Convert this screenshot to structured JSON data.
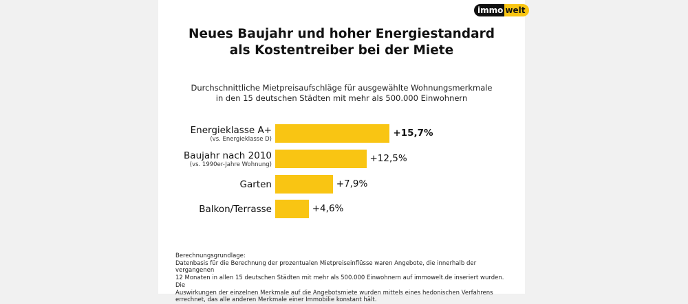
{
  "logo": {
    "part1": "immo",
    "part2": "welt"
  },
  "title": {
    "line1": "Neues Baujahr und hoher Energiestandard",
    "line2": "als Kostentreiber bei der Miete"
  },
  "subtitle": {
    "line1": "Durchschnittliche Mietpreisaufschläge für ausgewählte Wohnungsmerkmale",
    "line2": "in den 15 deutschen Städten mit mehr als 500.000 Einwohnern"
  },
  "chart_data": {
    "type": "bar",
    "orientation": "horizontal",
    "categories": [
      "Energieklasse A+",
      "Baujahr nach 2010",
      "Garten",
      "Balkon/Terrasse"
    ],
    "sublabels": [
      "(vs. Energieklasse D)",
      "(vs. 1990er-Jahre Wohnung)",
      "",
      ""
    ],
    "values": [
      15.7,
      12.5,
      7.9,
      4.6
    ],
    "value_labels": [
      "+15,7%",
      "+12,5%",
      "+7,9%",
      "+4,6%"
    ],
    "bar_color": "#f9c513"
  },
  "footnote": {
    "heading": "Berechnungsgrundlage:",
    "line1": "Datenbasis für die Berechnung der prozentualen Mietpreiseinflüsse waren Angebote, die innerhalb der vergangenen",
    "line2": "12 Monaten in allen 15 deutschen Städten mit mehr als 500.000 Einwohnern auf immowelt.de inseriert wurden. Die",
    "line3": "Auswirkungen der einzelnen Merkmale auf die Angebotsmiete wurden mittels eines hedonischen Verfahrens",
    "line4": "errechnet, das alle anderen Merkmale einer Immobilie konstant hält."
  }
}
